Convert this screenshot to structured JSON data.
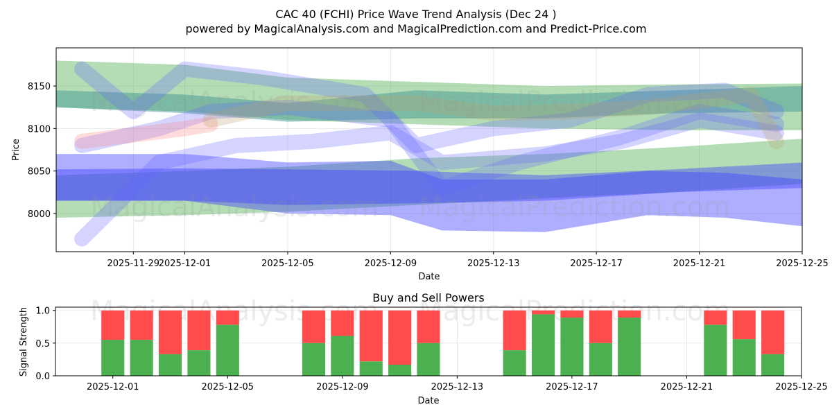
{
  "chart_data": [
    {
      "type": "area",
      "title": "CAC 40 (FCHI) Price Wave Trend Analysis (Dec 24 )",
      "subtitle": "powered by MagicalAnalysis.com and MagicalPrediction.com and Predict-Price.com",
      "xlabel": "Date",
      "ylabel": "Price",
      "xlim": [
        "2025-11-26",
        "2025-12-25"
      ],
      "ylim": [
        7955,
        8195
      ],
      "xticks": [
        "2025-11-29",
        "2025-12-01",
        "2025-12-05",
        "2025-12-09",
        "2025-12-13",
        "2025-12-17",
        "2025-12-21",
        "2025-12-25"
      ],
      "yticks": [
        8000,
        8050,
        8100,
        8150
      ],
      "watermarks": [
        "MagicalAnalysis.com",
        "MagicalPrediction.com"
      ],
      "series": [
        {
          "name": "green-band-1",
          "color": "#4caf50",
          "x": [
            "2025-11-26",
            "2025-12-01",
            "2025-12-05",
            "2025-12-10",
            "2025-12-15",
            "2025-12-20",
            "2025-12-25"
          ],
          "upper": [
            8180,
            8175,
            8160,
            8155,
            8150,
            8152,
            8153
          ],
          "lower": [
            8125,
            8120,
            8110,
            8105,
            8100,
            8098,
            8098
          ]
        },
        {
          "name": "green-band-2",
          "color": "#4caf50",
          "x": [
            "2025-11-26",
            "2025-12-01",
            "2025-12-05",
            "2025-12-10",
            "2025-12-15",
            "2025-12-20",
            "2025-12-25"
          ],
          "upper": [
            8045,
            8050,
            8055,
            8065,
            8070,
            8078,
            8088
          ],
          "lower": [
            7995,
            7998,
            8002,
            8010,
            8018,
            8025,
            8035
          ]
        },
        {
          "name": "teal-band",
          "color": "#2e8b8b",
          "x": [
            "2025-11-26",
            "2025-12-01",
            "2025-12-05",
            "2025-12-10",
            "2025-12-15",
            "2025-12-20",
            "2025-12-25"
          ],
          "upper": [
            8145,
            8140,
            8130,
            8145,
            8140,
            8145,
            8150
          ],
          "lower": [
            8125,
            8118,
            8108,
            8112,
            8112,
            8118,
            8120
          ]
        },
        {
          "name": "blue-band-1",
          "color": "#3f3fff",
          "x": [
            "2025-11-26",
            "2025-12-01",
            "2025-12-05",
            "2025-12-09",
            "2025-12-11",
            "2025-12-15",
            "2025-12-19",
            "2025-12-22",
            "2025-12-25"
          ],
          "upper": [
            8070,
            8070,
            8060,
            8062,
            8040,
            8040,
            8050,
            8048,
            8040
          ],
          "lower": [
            8015,
            8015,
            8000,
            7998,
            7980,
            7978,
            7998,
            7995,
            7985
          ]
        },
        {
          "name": "blue-band-2",
          "color": "#3f3fff",
          "x": [
            "2025-11-26",
            "2025-12-01",
            "2025-12-05",
            "2025-12-10",
            "2025-12-15",
            "2025-12-20",
            "2025-12-25"
          ],
          "upper": [
            8052,
            8053,
            8052,
            8050,
            8045,
            8052,
            8060
          ],
          "lower": [
            8015,
            8015,
            8010,
            8012,
            8015,
            8025,
            8030
          ]
        },
        {
          "name": "blue-wave-1",
          "color": "#6464ff",
          "x": [
            "2025-11-27",
            "2025-11-30",
            "2025-12-02",
            "2025-12-05",
            "2025-12-09",
            "2025-12-11",
            "2025-12-14",
            "2025-12-18",
            "2025-12-21",
            "2025-12-24"
          ],
          "y": [
            8080,
            8100,
            8120,
            8125,
            8110,
            8030,
            8060,
            8090,
            8120,
            8105
          ]
        },
        {
          "name": "blue-wave-2",
          "color": "#6464ff",
          "x": [
            "2025-11-27",
            "2025-11-29",
            "2025-12-01",
            "2025-12-04",
            "2025-12-08",
            "2025-12-10",
            "2025-12-13",
            "2025-12-16",
            "2025-12-19",
            "2025-12-22",
            "2025-12-24"
          ],
          "y": [
            8170,
            8120,
            8170,
            8160,
            8140,
            8080,
            8100,
            8110,
            8140,
            8145,
            8120
          ]
        },
        {
          "name": "blue-wave-3",
          "color": "#6464ff",
          "x": [
            "2025-11-27",
            "2025-11-30",
            "2025-12-03",
            "2025-12-06",
            "2025-12-09",
            "2025-12-11",
            "2025-12-15",
            "2025-12-18",
            "2025-12-21",
            "2025-12-24"
          ],
          "y": [
            7970,
            8060,
            8080,
            8085,
            8095,
            8060,
            8070,
            8085,
            8110,
            8095
          ]
        },
        {
          "name": "pink-wave",
          "color": "#ff8080",
          "x": [
            "2025-11-27",
            "2025-12-01",
            "2025-12-02"
          ],
          "y": [
            8085,
            8100,
            8105
          ]
        },
        {
          "name": "tan-wave",
          "color": "#bba070",
          "x": [
            "2025-12-02",
            "2025-12-05",
            "2025-12-10",
            "2025-12-13",
            "2025-12-16",
            "2025-12-19",
            "2025-12-23",
            "2025-12-24"
          ],
          "y": [
            8110,
            8130,
            8130,
            8118,
            8120,
            8125,
            8140,
            8085
          ]
        }
      ]
    },
    {
      "type": "bar",
      "title": "Buy and Sell Powers",
      "xlabel": "Date",
      "ylabel": "Signal Strength",
      "xlim": [
        "2025-11-29",
        "2025-12-25"
      ],
      "ylim": [
        0,
        1.05
      ],
      "xticks": [
        "2025-12-01",
        "2025-12-05",
        "2025-12-09",
        "2025-12-13",
        "2025-12-17",
        "2025-12-21",
        "2025-12-25"
      ],
      "yticks": [
        0.0,
        0.5,
        1.0
      ],
      "ytick_labels": [
        "0.0",
        "0.5",
        "1.0"
      ],
      "buy_color": "#4caf50",
      "sell_color": "#ff4b4b",
      "bars": [
        {
          "date": "2025-12-01",
          "buy": 0.55
        },
        {
          "date": "2025-12-02",
          "buy": 0.55
        },
        {
          "date": "2025-12-03",
          "buy": 0.33
        },
        {
          "date": "2025-12-04",
          "buy": 0.39
        },
        {
          "date": "2025-12-05",
          "buy": 0.78
        },
        {
          "date": "2025-12-08",
          "buy": 0.5
        },
        {
          "date": "2025-12-09",
          "buy": 0.61
        },
        {
          "date": "2025-12-10",
          "buy": 0.22
        },
        {
          "date": "2025-12-11",
          "buy": 0.17
        },
        {
          "date": "2025-12-12",
          "buy": 0.5
        },
        {
          "date": "2025-12-15",
          "buy": 0.39
        },
        {
          "date": "2025-12-16",
          "buy": 0.94
        },
        {
          "date": "2025-12-17",
          "buy": 0.89
        },
        {
          "date": "2025-12-18",
          "buy": 0.5
        },
        {
          "date": "2025-12-19",
          "buy": 0.89
        },
        {
          "date": "2025-12-22",
          "buy": 0.78
        },
        {
          "date": "2025-12-23",
          "buy": 0.56
        },
        {
          "date": "2025-12-24",
          "buy": 0.33
        }
      ]
    }
  ]
}
